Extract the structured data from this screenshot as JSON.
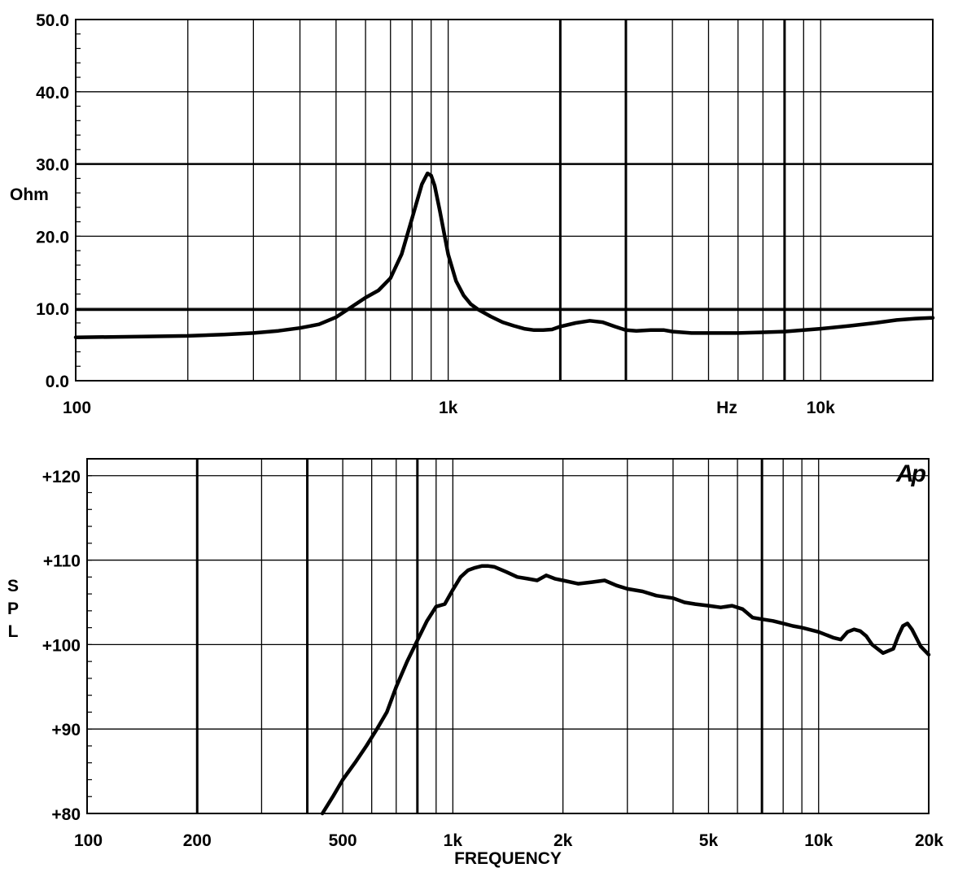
{
  "chart_data": [
    {
      "type": "line",
      "id": "impedance",
      "title": "",
      "xlabel": "Hz",
      "ylabel": "Ohm",
      "x_scale": "log",
      "xlim": [
        100,
        20000
      ],
      "ylim": [
        0,
        50
      ],
      "grid": true,
      "x_tick_labels": [
        {
          "value": 100,
          "label": "100"
        },
        {
          "value": 1000,
          "label": "1k"
        },
        {
          "value": 10000,
          "label": "10k"
        }
      ],
      "x_unit_label": {
        "value": 5600,
        "label": "Hz"
      },
      "y_tick_labels": [
        {
          "value": 0,
          "label": "0.0"
        },
        {
          "value": 10,
          "label": "10.0"
        },
        {
          "value": 20,
          "label": "20.0"
        },
        {
          "value": 30,
          "label": "30.0"
        },
        {
          "value": 40,
          "label": "40.0"
        },
        {
          "value": 50,
          "label": "50.0"
        }
      ],
      "x_gridlines": [
        200,
        300,
        400,
        500,
        600,
        700,
        800,
        900,
        1000,
        2000,
        3000,
        4000,
        5000,
        6000,
        7000,
        8000,
        9000,
        10000
      ],
      "x_gridlines_bold": [
        2000,
        3000,
        8000
      ],
      "y_gridlines": [
        10,
        20,
        30,
        40,
        50
      ],
      "y_gridlines_bold": [
        9.8,
        30
      ],
      "series": [
        {
          "x": [
            100,
            150,
            200,
            250,
            300,
            350,
            400,
            450,
            500,
            550,
            600,
            650,
            700,
            750,
            800,
            850,
            880,
            900,
            920,
            950,
            1000,
            1050,
            1100,
            1150,
            1200,
            1300,
            1400,
            1500,
            1600,
            1700,
            1800,
            1900,
            2000,
            2200,
            2400,
            2600,
            2800,
            3000,
            3200,
            3500,
            3800,
            4000,
            4500,
            5000,
            6000,
            7000,
            8000,
            9000,
            10000,
            12000,
            14000,
            16000,
            18000,
            20000
          ],
          "y": [
            6.0,
            6.1,
            6.2,
            6.4,
            6.6,
            6.9,
            7.3,
            7.8,
            8.8,
            10.2,
            11.5,
            12.5,
            14.2,
            17.5,
            22.5,
            27.2,
            28.7,
            28.4,
            27.0,
            23.5,
            17.5,
            13.8,
            11.8,
            10.6,
            9.9,
            8.9,
            8.1,
            7.6,
            7.2,
            7.0,
            7.0,
            7.1,
            7.5,
            8.0,
            8.3,
            8.1,
            7.5,
            7.0,
            6.9,
            7.0,
            7.0,
            6.8,
            6.6,
            6.6,
            6.6,
            6.7,
            6.8,
            7.0,
            7.2,
            7.6,
            8.0,
            8.4,
            8.6,
            8.7
          ]
        }
      ]
    },
    {
      "type": "line",
      "id": "spl",
      "title": "",
      "xlabel": "FREQUENCY",
      "ylabel": "SPL",
      "x_scale": "log",
      "xlim": [
        100,
        20000
      ],
      "ylim": [
        80,
        122
      ],
      "grid": true,
      "x_tick_labels": [
        {
          "value": 100,
          "label": "100"
        },
        {
          "value": 200,
          "label": "200"
        },
        {
          "value": 500,
          "label": "500"
        },
        {
          "value": 1000,
          "label": "1k"
        },
        {
          "value": 2000,
          "label": "2k"
        },
        {
          "value": 5000,
          "label": "5k"
        },
        {
          "value": 10000,
          "label": "10k"
        },
        {
          "value": 20000,
          "label": "20k"
        }
      ],
      "y_tick_labels": [
        {
          "value": 80,
          "label": "+80"
        },
        {
          "value": 90,
          "label": "+90"
        },
        {
          "value": 100,
          "label": "+100"
        },
        {
          "value": 110,
          "label": "+110"
        },
        {
          "value": 120,
          "label": "+120"
        }
      ],
      "x_gridlines": [
        200,
        300,
        400,
        500,
        600,
        700,
        800,
        900,
        1000,
        2000,
        3000,
        4000,
        5000,
        6000,
        7000,
        8000,
        9000,
        10000
      ],
      "x_gridlines_bold": [
        200,
        400,
        800,
        7000
      ],
      "y_gridlines": [
        90,
        100,
        110,
        120
      ],
      "logo_text": "Ap",
      "series": [
        {
          "x": [
            440,
            470,
            500,
            540,
            580,
            620,
            660,
            700,
            750,
            800,
            850,
            900,
            950,
            1000,
            1050,
            1100,
            1150,
            1200,
            1250,
            1300,
            1400,
            1500,
            1600,
            1700,
            1800,
            1900,
            2000,
            2200,
            2400,
            2600,
            2800,
            3000,
            3300,
            3600,
            4000,
            4300,
            4600,
            5000,
            5400,
            5800,
            6200,
            6600,
            7000,
            7500,
            8000,
            8500,
            9000,
            10000,
            11000,
            11500,
            12000,
            12500,
            13000,
            13500,
            14000,
            15000,
            16000,
            16500,
            17000,
            17500,
            18000,
            18500,
            19000,
            20000
          ],
          "y": [
            80.0,
            82.0,
            84.0,
            86.0,
            88.0,
            90.0,
            92.0,
            95.0,
            98.0,
            100.5,
            102.8,
            104.5,
            104.8,
            106.5,
            108.0,
            108.8,
            109.1,
            109.3,
            109.3,
            109.2,
            108.6,
            108.0,
            107.8,
            107.6,
            108.2,
            107.8,
            107.6,
            107.2,
            107.4,
            107.6,
            107.0,
            106.6,
            106.3,
            105.8,
            105.5,
            105.0,
            104.8,
            104.6,
            104.4,
            104.6,
            104.2,
            103.2,
            103.0,
            102.8,
            102.5,
            102.2,
            102.0,
            101.5,
            100.8,
            100.6,
            101.5,
            101.8,
            101.6,
            101.0,
            100.0,
            99.0,
            99.5,
            101.0,
            102.2,
            102.5,
            101.8,
            100.8,
            99.8,
            98.8
          ]
        }
      ]
    }
  ]
}
